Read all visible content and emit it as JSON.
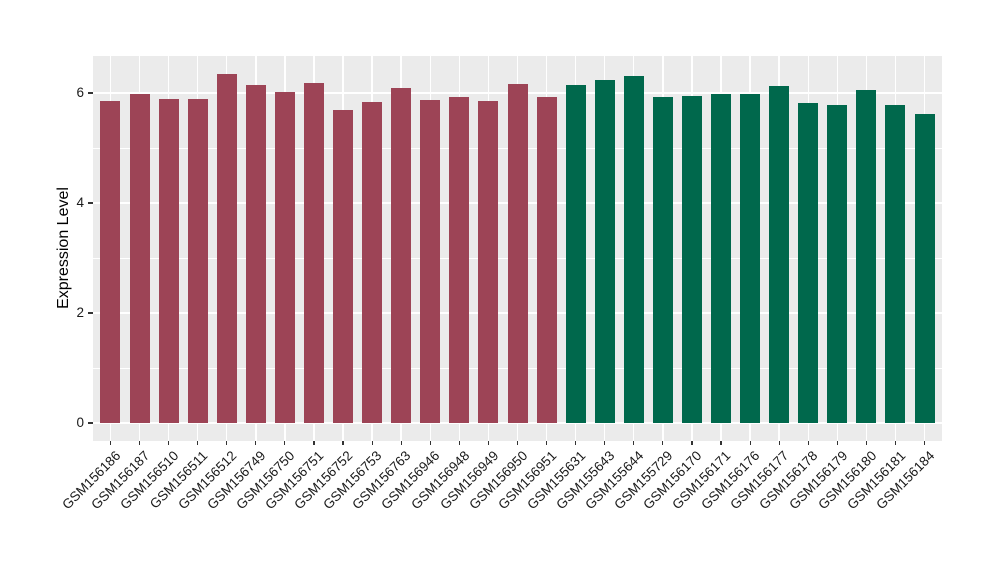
{
  "colors": {
    "figure_background": "#ffffff",
    "panel_background": "#ebebeb",
    "grid_color": "#ffffff",
    "tick_color": "#333333",
    "axis_text_color": "#1a1a1a",
    "group_colors": [
      "#9d4456",
      "#00684c"
    ]
  },
  "chart_data": {
    "type": "bar",
    "title": "",
    "xlabel": "",
    "ylabel": "Expression Level",
    "ylim": [
      -0.32,
      6.67
    ],
    "yticks_major": [
      0,
      2,
      4,
      6
    ],
    "yticks_minor": [
      1,
      3,
      5
    ],
    "grid": "on (white major+minor horizontal, white vertical at each category)",
    "legend": "none",
    "categories": [
      "GSM156186",
      "GSM156187",
      "GSM156510",
      "GSM156511",
      "GSM156512",
      "GSM156749",
      "GSM156750",
      "GSM156751",
      "GSM156752",
      "GSM156753",
      "GSM156763",
      "GSM156946",
      "GSM156948",
      "GSM156949",
      "GSM156950",
      "GSM156951",
      "GSM155631",
      "GSM155643",
      "GSM155644",
      "GSM155729",
      "GSM156170",
      "GSM156171",
      "GSM156176",
      "GSM156177",
      "GSM156178",
      "GSM156179",
      "GSM156180",
      "GSM156181",
      "GSM156184"
    ],
    "values": [
      5.86,
      5.99,
      5.89,
      5.89,
      6.35,
      6.15,
      6.02,
      6.18,
      5.7,
      5.84,
      6.1,
      5.88,
      5.92,
      5.85,
      6.17,
      5.92,
      6.14,
      6.23,
      6.31,
      5.92,
      5.95,
      5.99,
      5.98,
      6.13,
      5.81,
      5.78,
      6.06,
      5.79,
      5.61
    ],
    "group_index": [
      0,
      0,
      0,
      0,
      0,
      0,
      0,
      0,
      0,
      0,
      0,
      0,
      0,
      0,
      0,
      0,
      1,
      1,
      1,
      1,
      1,
      1,
      1,
      1,
      1,
      1,
      1,
      1,
      1
    ],
    "group_colors": [
      "#9d4456",
      "#00684c"
    ]
  }
}
